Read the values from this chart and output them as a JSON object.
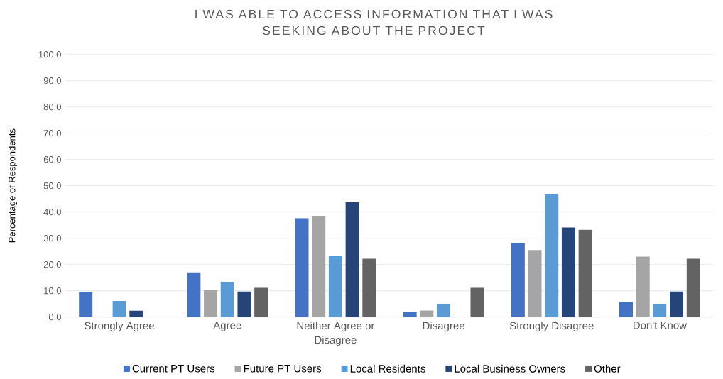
{
  "chart_data": {
    "type": "bar",
    "title": "I WAS ABLE TO ACCESS INFORMATION THAT I WAS SEEKING ABOUT THE PROJECT",
    "ylabel": "Percentage of Respondents",
    "categories": [
      "Strongly Agree",
      "Agree",
      "Neither Agree or Disagree",
      "Disagree",
      "Strongly Disagree",
      "Don't Know"
    ],
    "series": [
      {
        "name": "Current PT Users",
        "color": "#4472c4",
        "values": [
          9.4,
          17.0,
          37.7,
          1.9,
          28.2,
          5.7
        ]
      },
      {
        "name": "Future PT Users",
        "color": "#a5a5a5",
        "values": [
          null,
          10.2,
          38.3,
          2.5,
          25.5,
          23.0
        ]
      },
      {
        "name": "Local Residents",
        "color": "#5b9bd5",
        "values": [
          6.1,
          13.4,
          23.3,
          5.0,
          46.8,
          5.0
        ]
      },
      {
        "name": "Local Business Owners",
        "color": "#264478",
        "values": [
          2.4,
          9.7,
          43.7,
          null,
          34.1,
          9.7
        ]
      },
      {
        "name": "Other",
        "color": "#636363",
        "values": [
          null,
          11.1,
          22.2,
          11.1,
          33.2,
          22.2
        ]
      }
    ],
    "ylim": [
      0,
      100
    ],
    "yticks": [
      {
        "value": 0,
        "label": "0.0"
      },
      {
        "value": 10,
        "label": "10.0"
      },
      {
        "value": 20,
        "label": "20.0"
      },
      {
        "value": 30,
        "label": "30.0"
      },
      {
        "value": 40,
        "label": "40.0"
      },
      {
        "value": 50,
        "label": "50.0"
      },
      {
        "value": 60,
        "label": "60.0"
      },
      {
        "value": 70,
        "label": "70.0"
      },
      {
        "value": 80,
        "label": "80.0"
      },
      {
        "value": 90,
        "label": "90.0"
      },
      {
        "value": 100,
        "label": "100.0"
      }
    ],
    "grid": "y",
    "legend": "bottom"
  }
}
